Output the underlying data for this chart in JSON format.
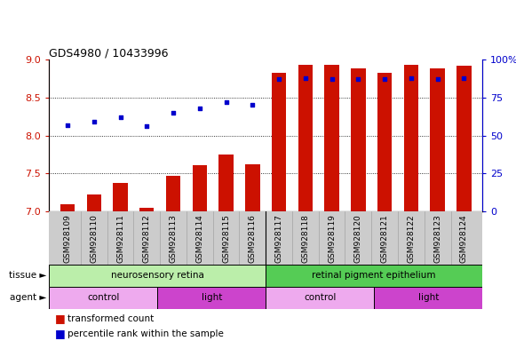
{
  "title": "GDS4980 / 10433996",
  "samples": [
    "GSM928109",
    "GSM928110",
    "GSM928111",
    "GSM928112",
    "GSM928113",
    "GSM928114",
    "GSM928115",
    "GSM928116",
    "GSM928117",
    "GSM928118",
    "GSM928119",
    "GSM928120",
    "GSM928121",
    "GSM928122",
    "GSM928123",
    "GSM928124"
  ],
  "bar_values": [
    7.1,
    7.22,
    7.37,
    7.05,
    7.47,
    7.61,
    7.75,
    7.62,
    8.83,
    8.93,
    8.93,
    8.88,
    8.83,
    8.93,
    8.88,
    8.92
  ],
  "dot_pct": [
    57,
    59,
    62,
    56,
    65,
    68,
    72,
    70,
    87,
    88,
    87,
    87,
    87,
    88,
    87,
    88
  ],
  "bar_color": "#cc1100",
  "dot_color": "#0000cc",
  "ylim_left": [
    7.0,
    9.0
  ],
  "ylim_right": [
    0,
    100
  ],
  "yticks_left": [
    7.0,
    7.5,
    8.0,
    8.5,
    9.0
  ],
  "yticks_right": [
    0,
    25,
    50,
    75,
    100
  ],
  "tissue_groups": [
    {
      "label": "neurosensory retina",
      "start": 0,
      "end": 8,
      "color": "#bbeeaa"
    },
    {
      "label": "retinal pigment epithelium",
      "start": 8,
      "end": 16,
      "color": "#55cc55"
    }
  ],
  "agent_groups": [
    {
      "label": "control",
      "start": 0,
      "end": 4,
      "color": "#eeaaee"
    },
    {
      "label": "light",
      "start": 4,
      "end": 8,
      "color": "#cc44cc"
    },
    {
      "label": "control",
      "start": 8,
      "end": 12,
      "color": "#eeaaee"
    },
    {
      "label": "light",
      "start": 12,
      "end": 16,
      "color": "#cc44cc"
    }
  ],
  "legend_items": [
    {
      "label": "transformed count",
      "color": "#cc1100"
    },
    {
      "label": "percentile rank within the sample",
      "color": "#0000cc"
    }
  ],
  "tissue_label": "tissue",
  "agent_label": "agent",
  "bar_width": 0.55,
  "xtick_bg": "#cccccc",
  "fig_bg": "#ffffff"
}
